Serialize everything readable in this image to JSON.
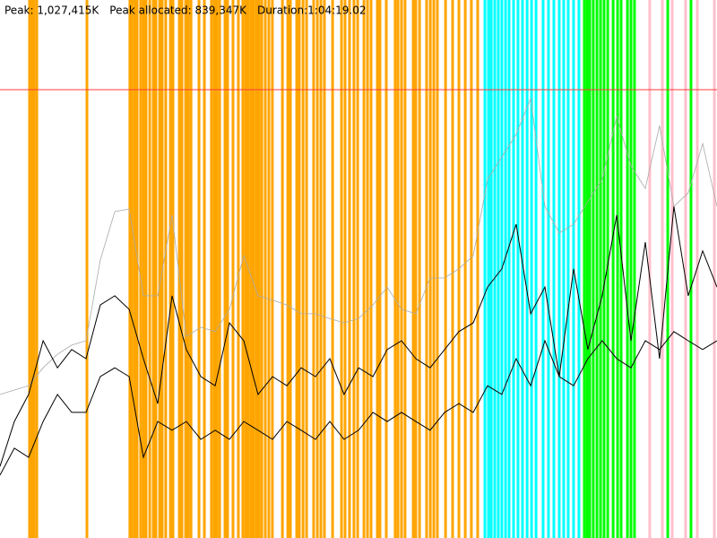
{
  "chart_data": {
    "type": "line",
    "header": [
      "Peak: 1,027,415K",
      "Peak allocated: 839,347K",
      "Duration:1:04:19.02"
    ],
    "xlim": [
      0,
      3859.02
    ],
    "ylim": [
      0,
      1233000
    ],
    "peak": {
      "value": 1027415,
      "color": "#ff3b3b"
    },
    "x": [
      0,
      77,
      154,
      232,
      309,
      386,
      463,
      540,
      618,
      695,
      772,
      849,
      926,
      1003,
      1081,
      1158,
      1235,
      1312,
      1389,
      1467,
      1544,
      1621,
      1698,
      1775,
      1852,
      1930,
      2007,
      2084,
      2161,
      2238,
      2315,
      2393,
      2470,
      2547,
      2624,
      2701,
      2778,
      2856,
      2933,
      3010,
      3087,
      3164,
      3241,
      3319,
      3396,
      3473,
      3550,
      3627,
      3704,
      3782,
      3859
    ],
    "series": [
      {
        "color": "#aaaaaa",
        "values": [
          329000,
          339000,
          349000,
          390000,
          421000,
          442000,
          452000,
          637000,
          748000,
          754000,
          555000,
          555000,
          740000,
          462000,
          483000,
          473000,
          524000,
          647000,
          555000,
          545000,
          534000,
          514000,
          514000,
          503000,
          493000,
          503000,
          534000,
          575000,
          524000,
          514000,
          596000,
          596000,
          617000,
          647000,
          822000,
          873000,
          925000,
          1007000,
          760000,
          699000,
          719000,
          771000,
          822000,
          966000,
          853000,
          801000,
          945000,
          760000,
          791000,
          904000,
          760000
        ]
      },
      {
        "color": "#000000",
        "values": [
          164000,
          267000,
          329000,
          452000,
          390000,
          432000,
          411000,
          534000,
          555000,
          524000,
          411000,
          308000,
          555000,
          432000,
          370000,
          349000,
          493000,
          452000,
          329000,
          370000,
          349000,
          390000,
          370000,
          411000,
          329000,
          390000,
          370000,
          432000,
          452000,
          411000,
          390000,
          432000,
          473000,
          493000,
          575000,
          617000,
          719000,
          514000,
          575000,
          370000,
          617000,
          432000,
          555000,
          740000,
          452000,
          678000,
          411000,
          760000,
          555000,
          658000,
          575000
        ]
      },
      {
        "color": "#000000",
        "values": [
          144000,
          206000,
          185000,
          267000,
          329000,
          288000,
          288000,
          370000,
          390000,
          370000,
          185000,
          267000,
          247000,
          267000,
          226000,
          247000,
          226000,
          267000,
          247000,
          226000,
          267000,
          247000,
          226000,
          267000,
          226000,
          247000,
          288000,
          267000,
          288000,
          267000,
          247000,
          288000,
          308000,
          288000,
          349000,
          329000,
          411000,
          349000,
          452000,
          370000,
          349000,
          411000,
          452000,
          411000,
          390000,
          452000,
          432000,
          473000,
          452000,
          432000,
          452000
        ]
      }
    ],
    "events": [
      {
        "color": "#ffa500",
        "x": [
          159,
          169,
          183,
          198,
          468,
          699,
          709,
          724,
          738,
          757,
          772,
          786,
          806,
          825,
          839,
          859,
          873,
          892,
          917,
          931,
          965,
          979,
          999,
          1013,
          1028,
          1071,
          1100,
          1138,
          1153,
          1167,
          1182,
          1211,
          1225,
          1254,
          1283,
          1307,
          1322,
          1336,
          1351,
          1365,
          1380,
          1394,
          1409,
          1428,
          1447,
          1466,
          1520,
          1549,
          1563,
          1597,
          1611,
          1631,
          1650,
          1688,
          1708,
          1727,
          1746,
          1790,
          1838,
          1857,
          1881,
          1905,
          1925,
          1959,
          1978,
          1997,
          2031,
          2045,
          2079,
          2127,
          2142,
          2161,
          2180,
          2224,
          2238,
          2258,
          2296,
          2316,
          2335,
          2354,
          2398,
          2436,
          2470,
          2504,
          2537,
          2571
        ]
      },
      {
        "color": "#00ffff",
        "x": [
          2610,
          2629,
          2644,
          2663,
          2682,
          2701,
          2721,
          2740,
          2764,
          2788,
          2812,
          2837,
          2861,
          2885,
          2923,
          2952,
          2981,
          3010,
          3034,
          3058,
          3087,
          3116
        ]
      },
      {
        "color": "#00ff00",
        "x": [
          3145,
          3160,
          3174,
          3193,
          3213,
          3232,
          3251,
          3271,
          3300,
          3324,
          3343,
          3377,
          3396,
          3415,
          3594,
          3719
        ]
      },
      {
        "color": "#ffc0cb",
        "x": [
          3497,
          3565,
          3618,
          3690,
          3753,
          3845
        ]
      }
    ]
  }
}
